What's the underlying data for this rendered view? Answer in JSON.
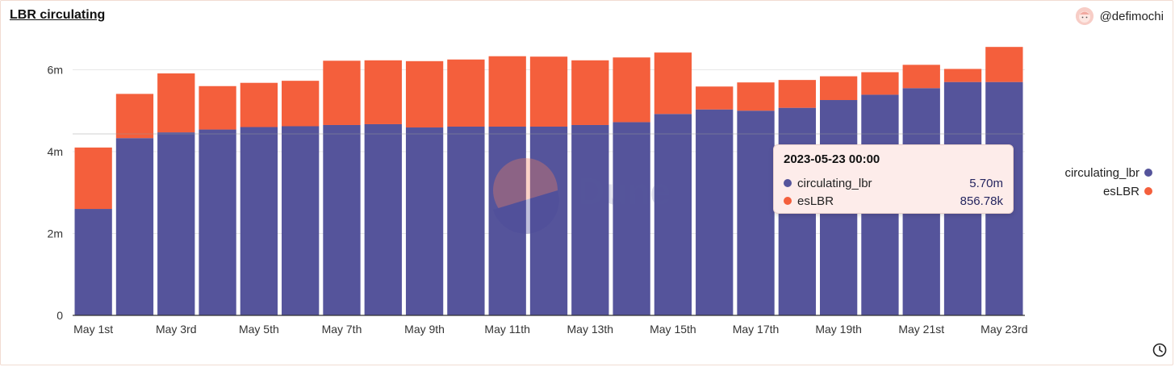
{
  "header": {
    "title": "LBR circulating",
    "author": "@defimochi"
  },
  "watermark": "Dune",
  "colors": {
    "circulating_lbr": "#55549b",
    "esLBR": "#f45f3c",
    "grid": "#e8e8e8",
    "axis": "#333333"
  },
  "tooltip": {
    "title": "2023-05-23 00:00",
    "rows": [
      {
        "name": "circulating_lbr",
        "value": "5.70m"
      },
      {
        "name": "esLBR",
        "value": "856.78k"
      }
    ]
  },
  "chart_data": {
    "type": "bar",
    "stacked": true,
    "title": "LBR circulating",
    "categories": [
      "May 1st",
      "May 2nd",
      "May 3rd",
      "May 4th",
      "May 5th",
      "May 6th",
      "May 7th",
      "May 8th",
      "May 9th",
      "May 10th",
      "May 11th",
      "May 12th",
      "May 13th",
      "May 14th",
      "May 15th",
      "May 16th",
      "May 17th",
      "May 18th",
      "May 19th",
      "May 20th",
      "May 21st",
      "May 22nd",
      "May 23rd"
    ],
    "x_tick_labels": [
      "May 1st",
      "May 3rd",
      "May 5th",
      "May 7th",
      "May 9th",
      "May 11th",
      "May 13th",
      "May 15th",
      "May 17th",
      "May 19th",
      "May 21st",
      "May 23rd"
    ],
    "series": [
      {
        "name": "circulating_lbr",
        "values": [
          2.6,
          4.33,
          4.47,
          4.54,
          4.6,
          4.62,
          4.65,
          4.67,
          4.59,
          4.61,
          4.61,
          4.61,
          4.65,
          4.72,
          4.92,
          5.03,
          5.0,
          5.07,
          5.26,
          5.39,
          5.55,
          5.7,
          5.7
        ]
      },
      {
        "name": "esLBR",
        "values": [
          1.5,
          1.08,
          1.44,
          1.06,
          1.08,
          1.11,
          1.57,
          1.56,
          1.62,
          1.64,
          1.72,
          1.71,
          1.58,
          1.58,
          1.5,
          0.56,
          0.69,
          0.68,
          0.58,
          0.55,
          0.57,
          0.32,
          0.857
        ]
      }
    ],
    "y_ticks": [
      0,
      2,
      4,
      6
    ],
    "y_tick_labels": [
      "0",
      "2m",
      "4m",
      "6m"
    ],
    "ylim": [
      0,
      6.6
    ],
    "y_unit": "millions",
    "legend_position": "right",
    "grid": true
  }
}
